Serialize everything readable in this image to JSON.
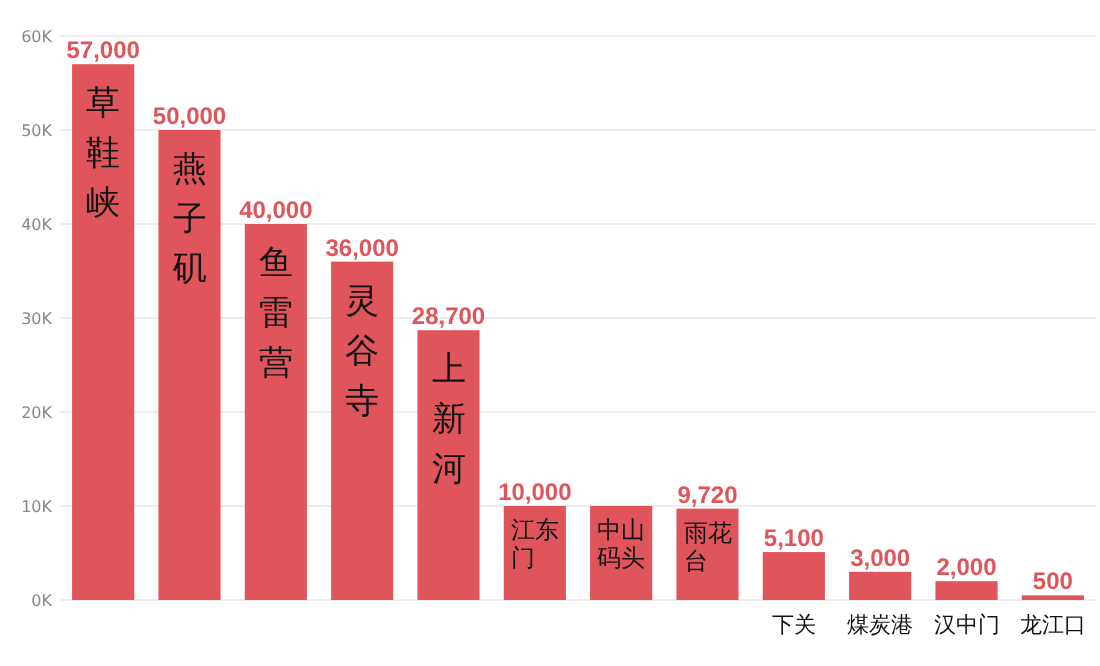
{
  "chart_data": {
    "type": "bar",
    "categories": [
      "草鞋峡",
      "燕子矶",
      "鱼雷营",
      "灵谷寺",
      "上新河",
      "江东门",
      "中山码头",
      "雨花台",
      "下关",
      "煤炭港",
      "汉中门",
      "龙江口"
    ],
    "values": [
      57000,
      50000,
      40000,
      36000,
      28700,
      10000,
      10000,
      9720,
      5100,
      3000,
      2000,
      500
    ],
    "color": "#e0555b",
    "ylim": [
      0,
      60000
    ],
    "yticks": [
      {
        "value": 0,
        "label": "0K"
      },
      {
        "value": 10000,
        "label": "10K"
      },
      {
        "value": 20000,
        "label": "20K"
      },
      {
        "value": 30000,
        "label": "30K"
      },
      {
        "value": 40000,
        "label": "40K"
      },
      {
        "value": 50000,
        "label": "50K"
      },
      {
        "value": 60000,
        "label": "60K"
      }
    ],
    "grid": "y",
    "value_labels": [
      "57,000",
      "50,000",
      "40,000",
      "36,000",
      "28,700",
      "10,000",
      null,
      "9,720",
      "5,100",
      "3,000",
      "2,000",
      "500"
    ]
  }
}
